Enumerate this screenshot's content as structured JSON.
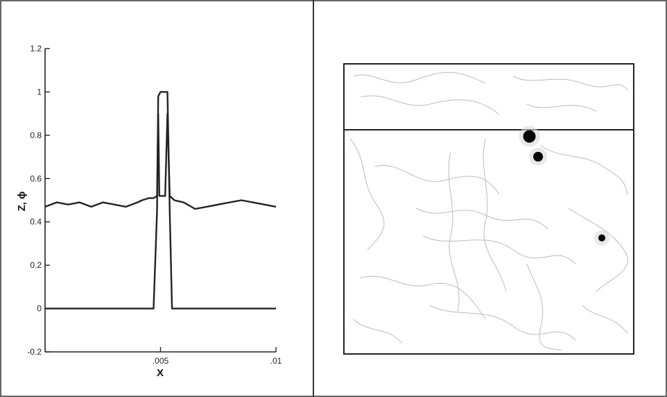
{
  "chart_data": [
    {
      "type": "line",
      "xlabel": "X",
      "ylabel": "Z, ϕ",
      "xlim": [
        0,
        0.01
      ],
      "ylim": [
        -0.2,
        1.2
      ],
      "x_ticks": [
        {
          "value": 0.005,
          "label": ".005"
        },
        {
          "value": 0.01,
          "label": ".01"
        }
      ],
      "y_ticks": [
        {
          "value": 1.2,
          "label": "1.2"
        },
        {
          "value": 1.0,
          "label": "1"
        },
        {
          "value": 0.8,
          "label": "0.8"
        },
        {
          "value": 0.6,
          "label": "0.6"
        },
        {
          "value": 0.4,
          "label": "0.4"
        },
        {
          "value": 0.2,
          "label": "0.2"
        },
        {
          "value": 0.0,
          "label": "0"
        },
        {
          "value": -0.2,
          "label": "-0.2"
        }
      ],
      "grid": false,
      "series": [
        {
          "x": [
            0,
            0.0005,
            0.001,
            0.0015,
            0.002,
            0.0025,
            0.003,
            0.0035,
            0.004,
            0.0042,
            0.0045,
            0.0047,
            0.00485,
            0.0049,
            0.00495,
            0.005,
            0.0051,
            0.0052,
            0.0053,
            0.0054,
            0.0055,
            0.0056,
            0.006,
            0.0065,
            0.007,
            0.0075,
            0.008,
            0.0085,
            0.009,
            0.0095,
            0.01
          ],
          "values": [
            0.47,
            0.49,
            0.48,
            0.49,
            0.47,
            0.49,
            0.48,
            0.47,
            0.49,
            0.5,
            0.51,
            0.51,
            0.52,
            0.9,
            0.52,
            0.52,
            0.52,
            0.52,
            0.9,
            0.52,
            0.51,
            0.5,
            0.49,
            0.46,
            0.47,
            0.48,
            0.49,
            0.5,
            0.49,
            0.48,
            0.47
          ]
        },
        {
          "x": [
            0,
            0.0045,
            0.0047,
            0.00485,
            0.0049,
            0.005,
            0.0051,
            0.0053,
            0.0054,
            0.0055,
            0.0056,
            0.01
          ],
          "values": [
            0.0,
            0.0,
            0.0,
            0.45,
            0.98,
            1.0,
            1.0,
            1.0,
            0.45,
            0.0,
            0.0,
            0.0
          ]
        }
      ]
    },
    {
      "type": "contour",
      "particles": [
        {
          "x": 0.64,
          "y": 0.75
        },
        {
          "x": 0.67,
          "y": 0.68
        },
        {
          "x": 0.89,
          "y": 0.4
        }
      ]
    }
  ]
}
